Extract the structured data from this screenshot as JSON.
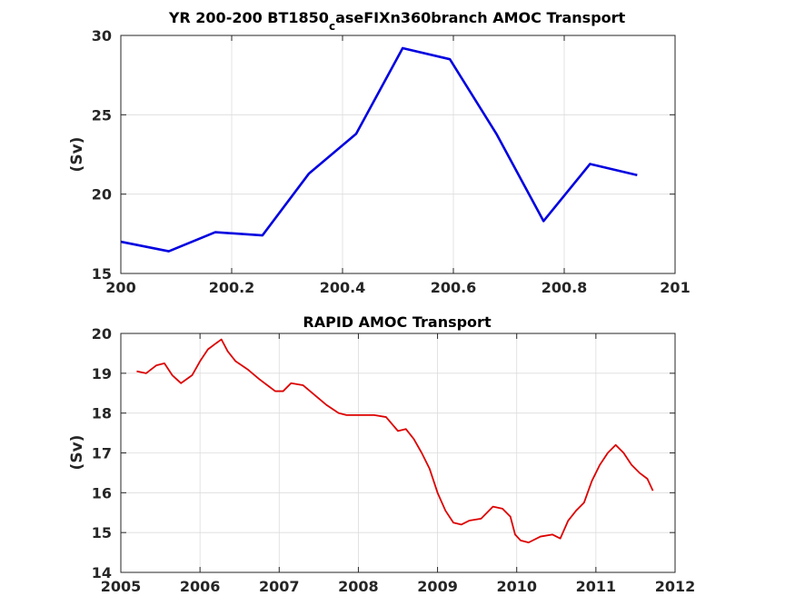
{
  "chart_data": [
    {
      "type": "line",
      "title_main": "YR 200-200 BT1850",
      "title_sub": "c",
      "title_rest": "aseFIXn360branch AMOC Transport",
      "xlabel": "",
      "ylabel": "(Sv)",
      "xlim": [
        200,
        201
      ],
      "ylim": [
        15,
        30
      ],
      "xticks": [
        "200",
        "200.2",
        "200.4",
        "200.6",
        "200.8",
        "201"
      ],
      "yticks": [
        "15",
        "20",
        "25",
        "30"
      ],
      "grid": true,
      "series": [
        {
          "color": "#0000e0",
          "x": [
            200.0,
            200.0865,
            200.1704,
            200.2555,
            200.3395,
            200.4246,
            200.5085,
            200.5937,
            200.6776,
            200.7627,
            200.8466,
            200.9317
          ],
          "y": [
            17.0,
            16.4,
            17.6,
            17.4,
            21.3,
            23.8,
            29.2,
            28.5,
            23.8,
            18.3,
            21.9,
            21.2
          ]
        }
      ]
    },
    {
      "type": "line",
      "title": "RAPID AMOC Transport",
      "xlabel": "",
      "ylabel": "(Sv)",
      "xlim": [
        2005,
        2012
      ],
      "ylim": [
        14,
        20
      ],
      "xticks": [
        "2005",
        "2006",
        "2007",
        "2008",
        "2009",
        "2010",
        "2011",
        "2012"
      ],
      "yticks": [
        "14",
        "15",
        "16",
        "17",
        "18",
        "19",
        "20"
      ],
      "grid": true,
      "series": [
        {
          "color": "#dd0000",
          "x": [
            2005.2,
            2005.32,
            2005.45,
            2005.55,
            2005.65,
            2005.76,
            2005.9,
            2006.0,
            2006.1,
            2006.2,
            2006.27,
            2006.35,
            2006.45,
            2006.6,
            2006.75,
            2006.85,
            2006.95,
            2007.05,
            2007.15,
            2007.3,
            2007.45,
            2007.6,
            2007.75,
            2007.85,
            2008.0,
            2008.2,
            2008.35,
            2008.5,
            2008.6,
            2008.7,
            2008.8,
            2008.9,
            2009.0,
            2009.1,
            2009.2,
            2009.3,
            2009.4,
            2009.55,
            2009.7,
            2009.82,
            2009.92,
            2009.98,
            2010.05,
            2010.15,
            2010.3,
            2010.45,
            2010.55,
            2010.65,
            2010.75,
            2010.85,
            2010.95,
            2011.05,
            2011.15,
            2011.25,
            2011.35,
            2011.45,
            2011.55,
            2011.65,
            2011.72
          ],
          "y": [
            19.05,
            19.0,
            19.2,
            19.25,
            18.95,
            18.75,
            18.95,
            19.3,
            19.6,
            19.75,
            19.85,
            19.55,
            19.3,
            19.1,
            18.85,
            18.7,
            18.55,
            18.55,
            18.75,
            18.7,
            18.45,
            18.2,
            18.0,
            17.95,
            17.95,
            17.95,
            17.9,
            17.55,
            17.6,
            17.35,
            17.0,
            16.6,
            16.0,
            15.55,
            15.25,
            15.2,
            15.3,
            15.35,
            15.65,
            15.6,
            15.4,
            14.95,
            14.8,
            14.75,
            14.9,
            14.95,
            14.85,
            15.3,
            15.55,
            15.75,
            16.3,
            16.7,
            17.0,
            17.2,
            17.0,
            16.7,
            16.5,
            16.35,
            16.05
          ]
        }
      ]
    }
  ]
}
